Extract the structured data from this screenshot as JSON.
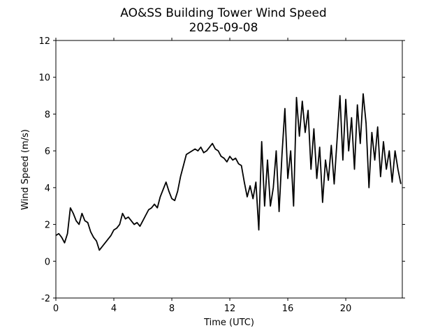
{
  "chart_data": {
    "type": "line",
    "title": "AO&SS Building Tower Wind Speed",
    "subtitle": "2025-09-08",
    "x_label": "Time (UTC)",
    "y_label": "Wind Speed (m/s)",
    "x": [
      0,
      0.2,
      0.4,
      0.6,
      0.8,
      1,
      1.2,
      1.4,
      1.6,
      1.8,
      2,
      2.2,
      2.4,
      2.6,
      2.8,
      3,
      3.2,
      3.4,
      3.6,
      3.8,
      4,
      4.2,
      4.4,
      4.6,
      4.8,
      5,
      5.2,
      5.4,
      5.6,
      5.8,
      6,
      6.2,
      6.4,
      6.6,
      6.8,
      7,
      7.2,
      7.4,
      7.6,
      7.8,
      8,
      8.2,
      8.4,
      8.6,
      8.8,
      9,
      9.2,
      9.4,
      9.6,
      9.8,
      10,
      10.2,
      10.4,
      10.6,
      10.8,
      11,
      11.2,
      11.4,
      11.6,
      11.8,
      12,
      12.2,
      12.4,
      12.6,
      12.8,
      13,
      13.2,
      13.4,
      13.6,
      13.8,
      14,
      14.2,
      14.4,
      14.6,
      14.8,
      15,
      15.2,
      15.4,
      15.6,
      15.8,
      16,
      16.2,
      16.4,
      16.6,
      16.8,
      17,
      17.2,
      17.4,
      17.6,
      17.8,
      18,
      18.2,
      18.4,
      18.6,
      18.8,
      19,
      19.2,
      19.4,
      19.6,
      19.8,
      20,
      20.2,
      20.4,
      20.6,
      20.8,
      21,
      21.2,
      21.4,
      21.6,
      21.8,
      22,
      22.2,
      22.4,
      22.6,
      22.8,
      23,
      23.2,
      23.4,
      23.6,
      23.8
    ],
    "series": [
      {
        "name": "Wind Speed",
        "color": "#000000",
        "values": [
          1.4,
          1.5,
          1.3,
          1.0,
          1.5,
          2.9,
          2.6,
          2.2,
          2.0,
          2.6,
          2.2,
          2.1,
          1.6,
          1.3,
          1.1,
          0.6,
          0.8,
          1.0,
          1.2,
          1.4,
          1.7,
          1.8,
          2.0,
          2.6,
          2.3,
          2.4,
          2.2,
          2.0,
          2.1,
          1.9,
          2.2,
          2.5,
          2.8,
          2.9,
          3.1,
          2.9,
          3.5,
          3.9,
          4.3,
          3.8,
          3.4,
          3.3,
          3.8,
          4.6,
          5.2,
          5.8,
          5.9,
          6.0,
          6.1,
          6.0,
          6.2,
          5.9,
          6.0,
          6.2,
          6.4,
          6.1,
          6.0,
          5.7,
          5.6,
          5.4,
          5.7,
          5.5,
          5.6,
          5.3,
          5.2,
          4.3,
          3.5,
          4.1,
          3.4,
          4.3,
          1.7,
          6.5,
          3.0,
          5.5,
          3.0,
          4.0,
          6.0,
          2.7,
          5.8,
          8.3,
          4.5,
          6.0,
          3.0,
          8.9,
          6.8,
          8.7,
          7.0,
          8.2,
          5.0,
          7.2,
          4.5,
          6.2,
          3.2,
          5.5,
          4.4,
          6.3,
          4.2,
          6.6,
          9.0,
          5.5,
          8.8,
          6.0,
          7.8,
          5.0,
          8.5,
          6.4,
          9.1,
          7.5,
          4.0,
          7.0,
          5.5,
          7.3,
          4.6,
          6.5,
          5.0,
          6.0,
          4.3,
          6.0,
          5.0,
          4.2
        ]
      }
    ],
    "xlim": [
      0,
      23.9
    ],
    "ylim": [
      -2,
      12
    ],
    "xticks": [
      0,
      4,
      8,
      12,
      16,
      20
    ],
    "yticks": [
      -2,
      0,
      2,
      4,
      6,
      8,
      10,
      12
    ]
  }
}
